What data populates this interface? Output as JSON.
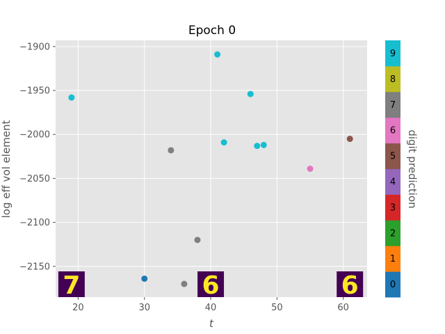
{
  "chart_data": {
    "type": "scatter",
    "title": "Epoch 0",
    "xlabel": "t",
    "ylabel": "log eff vol element",
    "xlim": [
      16.6,
      63.6
    ],
    "ylim": [
      -2185,
      -1893
    ],
    "xticks": [
      20,
      30,
      40,
      50,
      60
    ],
    "yticks": [
      -1900,
      -1950,
      -2000,
      -2050,
      -2100,
      -2150
    ],
    "xtick_labels": [
      "20",
      "30",
      "40",
      "50",
      "60"
    ],
    "ytick_labels": [
      "−1900",
      "−1950",
      "−2000",
      "−2050",
      "−2100",
      "−2150"
    ],
    "grid": true,
    "background": "#e5e5e5",
    "points": [
      {
        "x": 19,
        "y": -1958,
        "digit": 9
      },
      {
        "x": 30,
        "y": -2164,
        "digit": 0
      },
      {
        "x": 34,
        "y": -2018,
        "digit": 7
      },
      {
        "x": 36,
        "y": -2170,
        "digit": 7
      },
      {
        "x": 38,
        "y": -2120,
        "digit": 7
      },
      {
        "x": 41,
        "y": -1909,
        "digit": 9
      },
      {
        "x": 42,
        "y": -2009,
        "digit": 9
      },
      {
        "x": 46,
        "y": -1954,
        "digit": 9
      },
      {
        "x": 47,
        "y": -2013,
        "digit": 9
      },
      {
        "x": 48,
        "y": -2012,
        "digit": 9
      },
      {
        "x": 55,
        "y": -2039,
        "digit": 6
      },
      {
        "x": 61,
        "y": -2005,
        "digit": 5
      }
    ],
    "thumbnails": [
      {
        "x": 19,
        "glyph": "7"
      },
      {
        "x": 40,
        "glyph": "6"
      },
      {
        "x": 61,
        "glyph": "6"
      }
    ],
    "colorbar": {
      "label": "digit prediction",
      "labels": [
        "0",
        "1",
        "2",
        "3",
        "4",
        "5",
        "6",
        "7",
        "8",
        "9"
      ],
      "colors": [
        "#1f77b4",
        "#ff7f0e",
        "#2ca02c",
        "#d62728",
        "#9467bd",
        "#8c564b",
        "#e377c2",
        "#7f7f7f",
        "#bcbd22",
        "#17becf"
      ]
    }
  }
}
